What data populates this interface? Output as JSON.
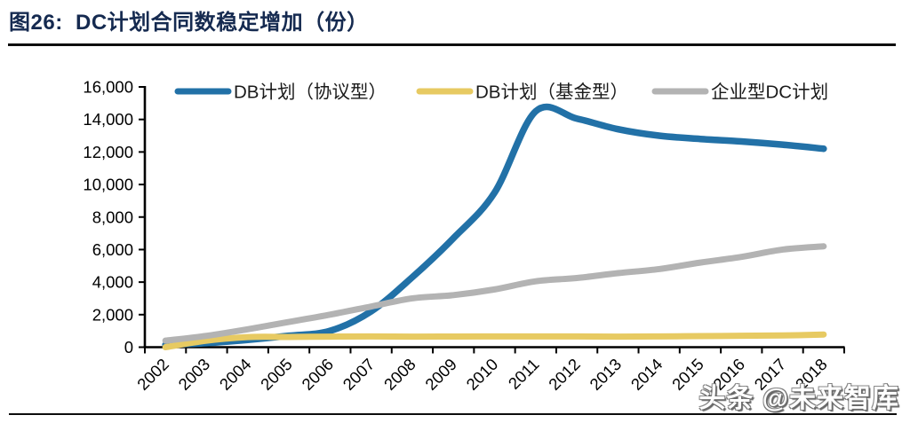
{
  "header": {
    "title": "图26:  DC计划合同数稳定增加（份）"
  },
  "watermark": "头条 @未来智库",
  "chart_data": {
    "type": "line",
    "title": "图26: DC计划合同数稳定增加（份）",
    "categories": [
      "2002",
      "2003",
      "2004",
      "2005",
      "2006",
      "2007",
      "2008",
      "2009",
      "2010",
      "2011",
      "2012",
      "2013",
      "2014",
      "2015",
      "2016",
      "2017",
      "2018"
    ],
    "series": [
      {
        "name": "DB计划（协议型）",
        "color": "#2271a7",
        "values": [
          150,
          250,
          450,
          700,
          1000,
          2200,
          4300,
          6700,
          9500,
          14500,
          14050,
          13400,
          13000,
          12800,
          12650,
          12450,
          12200
        ]
      },
      {
        "name": "DB计划（基金型）",
        "color": "#e7ca62",
        "values": [
          0,
          400,
          620,
          630,
          650,
          660,
          650,
          655,
          660,
          660,
          660,
          650,
          660,
          680,
          700,
          720,
          780
        ]
      },
      {
        "name": "企业型DC计划",
        "color": "#b3b3b3",
        "values": [
          400,
          700,
          1100,
          1550,
          2000,
          2500,
          3000,
          3200,
          3550,
          4050,
          4250,
          4550,
          4800,
          5200,
          5550,
          6000,
          6200
        ]
      }
    ],
    "xlabel": "",
    "ylabel": "",
    "ylim": [
      0,
      16000
    ],
    "ytick_step": 2000,
    "ytick_labels": [
      "0",
      "2,000",
      "4,000",
      "6,000",
      "8,000",
      "10,000",
      "12,000",
      "14,000",
      "16,000"
    ],
    "legend_position": "top",
    "grid": false,
    "smooth": true,
    "axis_color": "#000000",
    "tick_label_color": "#000000",
    "legend_text_color": "#1a1a1a",
    "title_color": "#152a50"
  }
}
